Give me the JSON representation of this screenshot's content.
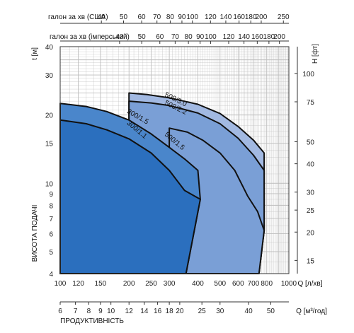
{
  "chart_data": {
    "type": "area",
    "colors": {
      "family_300": "#2b6fbe",
      "family_300_upper": "#4a86cb",
      "family_500_lower": "#7a9fd6",
      "family_500_upper": "#a2b9e2",
      "outline": "#111111",
      "grid": "#bdbdbd"
    },
    "x_axis": {
      "label": "Q [л/хв]",
      "scale": "log",
      "range": [
        100,
        1000
      ],
      "ticks": [
        "100",
        "120",
        "150",
        "200",
        "250",
        "300",
        "400",
        "500",
        "600",
        "700",
        "800",
        "1000"
      ]
    },
    "x_axis_m3h": {
      "label": "Q [м³/год]",
      "ticks": [
        "6",
        "7",
        "8",
        "9",
        "10",
        "12",
        "14",
        "16",
        "18",
        "20",
        "25",
        "30",
        "40",
        "50"
      ]
    },
    "x_axis_us_gpm": {
      "label": "галон за хв (США)",
      "ticks": [
        "40",
        "50",
        "60",
        "70",
        "80",
        "90",
        "100",
        "120",
        "140",
        "160",
        "180",
        "200",
        "250"
      ]
    },
    "x_axis_imp_gpm": {
      "label": "галон за хв (імперський)",
      "ticks": [
        "40",
        "50",
        "60",
        "70",
        "80",
        "90",
        "100",
        "120",
        "140",
        "160",
        "180",
        "200"
      ]
    },
    "y_axis": {
      "label": "t [м]",
      "scale": "log",
      "range": [
        4,
        40
      ],
      "ticks": [
        "4",
        "5",
        "6",
        "7",
        "8",
        "9",
        "10",
        "15",
        "20",
        "30",
        "40"
      ]
    },
    "y_axis_right": {
      "label": "H [фт]",
      "ticks": [
        "15",
        "20",
        "25",
        "30",
        "40",
        "50",
        "75",
        "100"
      ]
    },
    "bottom_caption": "ПРОДУКТИВНІСТЬ",
    "left_caption": "ВИСОТА ПОДАЧІ",
    "series": [
      {
        "name": "500/3.0",
        "points": [
          [
            200,
            25
          ],
          [
            240,
            24.6
          ],
          [
            300,
            23.8
          ],
          [
            400,
            22.3
          ],
          [
            500,
            20.3
          ],
          [
            600,
            17.8
          ],
          [
            700,
            15.5
          ],
          [
            780,
            13.6
          ]
        ]
      },
      {
        "name": "500/2.2",
        "points": [
          [
            200,
            23
          ],
          [
            250,
            22.6
          ],
          [
            300,
            22.0
          ],
          [
            400,
            20.4
          ],
          [
            500,
            18.3
          ],
          [
            600,
            15.8
          ],
          [
            700,
            13.3
          ],
          [
            780,
            11.4
          ]
        ]
      },
      {
        "name": "500/1.5",
        "points": [
          [
            300,
            17.5
          ],
          [
            360,
            16.8
          ],
          [
            420,
            15.5
          ],
          [
            500,
            13.6
          ],
          [
            580,
            11.4
          ],
          [
            660,
            8.8
          ],
          [
            730,
            7.5
          ],
          [
            780,
            6.2
          ],
          [
            740,
            4
          ]
        ]
      },
      {
        "name": "300/1.5",
        "points": [
          [
            100,
            22.5
          ],
          [
            130,
            21.8
          ],
          [
            160,
            20.7
          ],
          [
            200,
            19.0
          ],
          [
            250,
            16.5
          ],
          [
            300,
            14.4
          ],
          [
            350,
            12.8
          ],
          [
            400,
            11.4
          ]
        ]
      },
      {
        "name": "300/1.1",
        "points": [
          [
            100,
            19.0
          ],
          [
            130,
            18.3
          ],
          [
            160,
            17.2
          ],
          [
            200,
            15.7
          ],
          [
            250,
            13.6
          ],
          [
            300,
            11.4
          ],
          [
            350,
            9.3
          ],
          [
            410,
            8.5
          ],
          [
            355,
            4
          ]
        ]
      }
    ]
  }
}
